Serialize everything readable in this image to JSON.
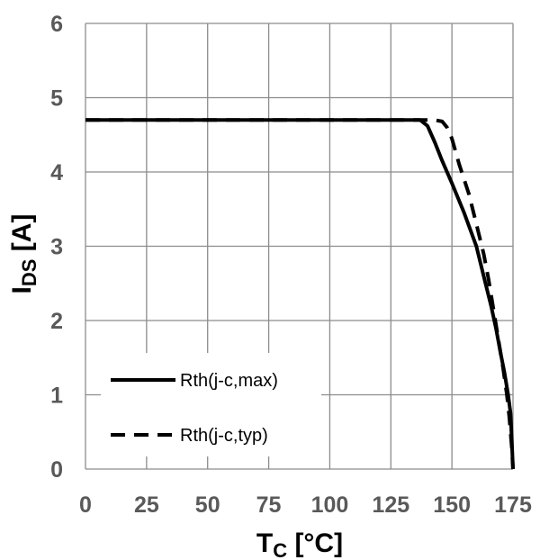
{
  "chart_data": {
    "type": "line",
    "title": "",
    "xlabel": {
      "main": "T",
      "sub": "C",
      "unit": " [°C]"
    },
    "ylabel": {
      "main": "I",
      "sub": "DS",
      "unit": " [A]"
    },
    "xlim": [
      0,
      175
    ],
    "ylim": [
      0,
      6
    ],
    "xticks": [
      0,
      25,
      50,
      75,
      100,
      125,
      150,
      175
    ],
    "yticks": [
      0,
      1,
      2,
      3,
      4,
      5,
      6
    ],
    "xtick_labels": [
      "0",
      "25",
      "50",
      "75",
      "100",
      "125",
      "150",
      "175"
    ],
    "ytick_labels": [
      "0",
      "1",
      "2",
      "3",
      "4",
      "5",
      "6"
    ],
    "grid": true,
    "legend_position": "bottom-left",
    "series": [
      {
        "name": "Rth(j-c,max)",
        "style": "solid",
        "color": "#000000",
        "x": [
          0,
          137,
          140,
          143,
          146,
          150,
          155,
          160,
          163,
          166,
          168,
          170,
          171.5,
          173,
          174,
          174.5,
          175
        ],
        "y": [
          4.7,
          4.7,
          4.62,
          4.4,
          4.15,
          3.85,
          3.45,
          3.0,
          2.6,
          2.2,
          1.9,
          1.55,
          1.3,
          1.0,
          0.75,
          0.4,
          0
        ]
      },
      {
        "name": "Rth(j-c,typ)",
        "style": "dashed",
        "color": "#000000",
        "x": [
          0,
          143,
          146,
          148,
          150,
          153,
          157,
          160,
          163,
          165,
          167,
          169,
          171,
          172.5,
          173.5,
          174.5,
          175
        ],
        "y": [
          4.7,
          4.7,
          4.68,
          4.6,
          4.45,
          4.1,
          3.7,
          3.3,
          2.9,
          2.55,
          2.15,
          1.75,
          1.35,
          1.0,
          0.7,
          0.3,
          0
        ]
      }
    ]
  }
}
